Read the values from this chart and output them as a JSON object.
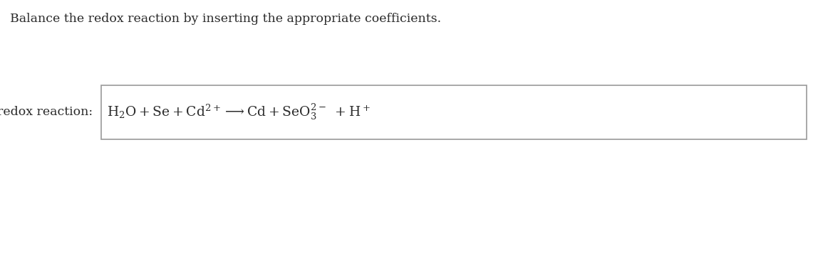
{
  "title": "Balance the redox reaction by inserting the appropriate coefficients.",
  "title_color": "#2b2b2b",
  "title_fontsize": 12.5,
  "label_text": "redox reaction:",
  "label_color": "#2b2b2b",
  "label_fontsize": 12.5,
  "equation_fontsize": 13.5,
  "equation_color": "#2b2b2b",
  "box_edge_color": "#999999",
  "background_color": "#ffffff"
}
